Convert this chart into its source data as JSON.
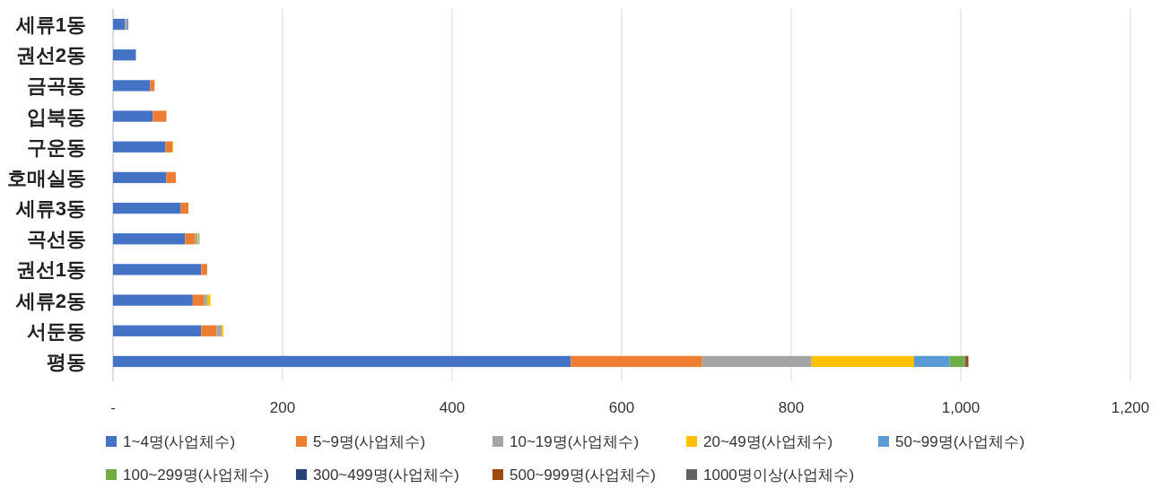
{
  "chart_data": {
    "type": "bar",
    "orientation": "horizontal",
    "stacked": true,
    "categories": [
      "세류1동",
      "권선2동",
      "금곡동",
      "입북동",
      "구운동",
      "호매실동",
      "세류3동",
      "곡선동",
      "권선1동",
      "세류2동",
      "서둔동",
      "평동"
    ],
    "xlim": [
      0,
      1200
    ],
    "xticks": [
      {
        "value": 0,
        "label": "-"
      },
      200,
      400,
      600,
      800,
      {
        "value": 1000,
        "label": "1,000"
      },
      {
        "value": 1200,
        "label": "1,200"
      }
    ],
    "grid": "x",
    "legend": "bottom",
    "series": [
      {
        "name": "1~4명(사업체수)",
        "color": "#4472c4",
        "values": [
          14,
          27,
          44,
          47,
          62,
          63,
          80,
          85,
          104,
          94,
          104,
          540
        ]
      },
      {
        "name": "5~9명(사업체수)",
        "color": "#ed7d31",
        "values": [
          1,
          0,
          5,
          16,
          8,
          11,
          9,
          12,
          7,
          13,
          18,
          155
        ]
      },
      {
        "name": "10~19명(사업체수)",
        "color": "#a5a5a5",
        "values": [
          1,
          null,
          0,
          0,
          0,
          null,
          null,
          3,
          0,
          4,
          6,
          129
        ]
      },
      {
        "name": "20~49명(사업체수)",
        "color": "#ffc000",
        "values": [
          0,
          0,
          0,
          0,
          1,
          0,
          0,
          1,
          0,
          4,
          2,
          121
        ]
      },
      {
        "name": "50~99명(사업체수)",
        "color": "#5b9bd5",
        "values": [
          2,
          0,
          0,
          0,
          0,
          0,
          0,
          0,
          0,
          0,
          0,
          42
        ]
      },
      {
        "name": "100~299명(사업체수)",
        "color": "#70ad47",
        "values": [
          0,
          0,
          0,
          0,
          0,
          0,
          0,
          1,
          0,
          0,
          0,
          18
        ]
      },
      {
        "name": "300~499명(사업체수)",
        "color": "#264478",
        "values": [
          0,
          0,
          0,
          0,
          0,
          0,
          0,
          0,
          0,
          0,
          0,
          1
        ]
      },
      {
        "name": "500~999명(사업체수)",
        "color": "#9e480e",
        "values": [
          0,
          0,
          0,
          0,
          0,
          0,
          0,
          0,
          0,
          0,
          0,
          3
        ]
      },
      {
        "name": "1000명이상(사업체수)",
        "color": "#636363",
        "values": [
          0,
          0,
          0,
          0,
          0,
          0,
          0,
          0,
          0,
          0,
          0,
          0
        ]
      }
    ]
  }
}
